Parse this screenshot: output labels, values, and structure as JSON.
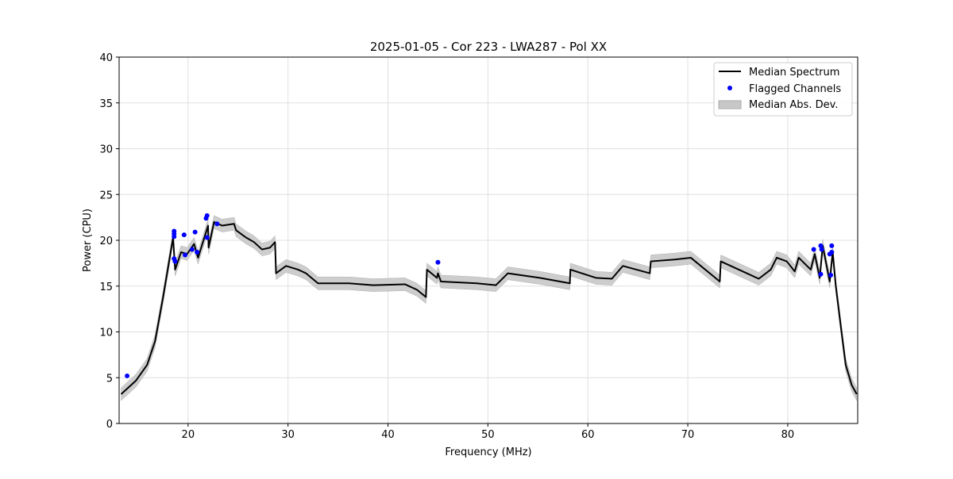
{
  "chart_data": {
    "type": "line",
    "title": "2025-01-05 - Cor 223 - LWA287 - Pol XX",
    "xlabel": "Frequency (MHz)",
    "ylabel": "Power (CPU)",
    "xlim": [
      13.1,
      87.0
    ],
    "ylim": [
      0,
      40
    ],
    "xticks": [
      20,
      30,
      40,
      50,
      60,
      70,
      80
    ],
    "yticks": [
      0,
      5,
      10,
      15,
      20,
      25,
      30,
      35,
      40
    ],
    "grid": true,
    "legend": {
      "placement": "top-right",
      "entries": [
        "Median Spectrum",
        "Flagged Channels",
        "Median Abs. Dev."
      ]
    },
    "colors": {
      "median": "#000000",
      "flagged": "#0000ff",
      "mad": "#c8c8c8"
    },
    "median_spectrum": [
      [
        13.3,
        3.2
      ],
      [
        13.9,
        3.8
      ],
      [
        14.8,
        4.7
      ],
      [
        15.9,
        6.4
      ],
      [
        16.7,
        9.0
      ],
      [
        17.5,
        13.8
      ],
      [
        18.1,
        17.7
      ],
      [
        18.5,
        20.3
      ],
      [
        18.7,
        16.8
      ],
      [
        19.3,
        18.7
      ],
      [
        19.9,
        18.5
      ],
      [
        20.6,
        19.6
      ],
      [
        21.0,
        18.1
      ],
      [
        22.0,
        21.6
      ],
      [
        22.05,
        19.2
      ],
      [
        22.6,
        22.0
      ],
      [
        23.4,
        21.6
      ],
      [
        24.6,
        21.8
      ],
      [
        24.8,
        21.1
      ],
      [
        25.8,
        20.3
      ],
      [
        26.6,
        19.8
      ],
      [
        27.4,
        19.0
      ],
      [
        28.2,
        19.2
      ],
      [
        28.7,
        19.8
      ],
      [
        28.8,
        16.4
      ],
      [
        29.8,
        17.2
      ],
      [
        31.0,
        16.8
      ],
      [
        31.8,
        16.4
      ],
      [
        33.0,
        15.3
      ],
      [
        36.1,
        15.3
      ],
      [
        38.5,
        15.1
      ],
      [
        41.7,
        15.2
      ],
      [
        42.9,
        14.6
      ],
      [
        43.8,
        13.8
      ],
      [
        43.9,
        16.8
      ],
      [
        44.9,
        15.9
      ],
      [
        45.0,
        16.4
      ],
      [
        45.3,
        15.5
      ],
      [
        48.9,
        15.3
      ],
      [
        50.8,
        15.1
      ],
      [
        52.0,
        16.4
      ],
      [
        55.2,
        15.9
      ],
      [
        58.2,
        15.3
      ],
      [
        58.25,
        16.8
      ],
      [
        60.8,
        15.9
      ],
      [
        62.4,
        15.8
      ],
      [
        63.5,
        17.2
      ],
      [
        66.2,
        16.4
      ],
      [
        66.3,
        17.7
      ],
      [
        68.7,
        17.9
      ],
      [
        70.3,
        18.1
      ],
      [
        73.2,
        15.5
      ],
      [
        73.3,
        17.7
      ],
      [
        75.9,
        16.4
      ],
      [
        77.1,
        15.8
      ],
      [
        78.3,
        16.8
      ],
      [
        78.9,
        18.1
      ],
      [
        79.9,
        17.7
      ],
      [
        80.7,
        16.6
      ],
      [
        81.1,
        18.1
      ],
      [
        82.3,
        16.8
      ],
      [
        82.7,
        18.5
      ],
      [
        83.2,
        15.9
      ],
      [
        83.5,
        19.4
      ],
      [
        84.2,
        15.5
      ],
      [
        84.5,
        18.7
      ],
      [
        84.8,
        15.1
      ],
      [
        85.3,
        10.7
      ],
      [
        85.8,
        6.4
      ],
      [
        86.4,
        4.2
      ],
      [
        86.9,
        3.2
      ]
    ],
    "median_abs_dev": 0.7,
    "flagged_channels": [
      [
        13.9,
        5.2
      ],
      [
        18.6,
        20.7
      ],
      [
        18.6,
        21.0
      ],
      [
        18.6,
        20.4
      ],
      [
        18.7,
        17.7
      ],
      [
        18.6,
        18.0
      ],
      [
        19.6,
        20.6
      ],
      [
        19.7,
        18.4
      ],
      [
        20.7,
        20.9
      ],
      [
        20.4,
        19.0
      ],
      [
        20.9,
        18.7
      ],
      [
        21.8,
        22.4
      ],
      [
        21.9,
        22.7
      ],
      [
        21.9,
        20.3
      ],
      [
        22.9,
        21.8
      ],
      [
        45.0,
        17.6
      ],
      [
        82.6,
        19.0
      ],
      [
        83.3,
        19.4
      ],
      [
        83.4,
        19.0
      ],
      [
        83.3,
        16.3
      ],
      [
        84.2,
        18.5
      ],
      [
        84.4,
        19.4
      ],
      [
        84.4,
        18.7
      ],
      [
        84.3,
        16.2
      ]
    ]
  }
}
